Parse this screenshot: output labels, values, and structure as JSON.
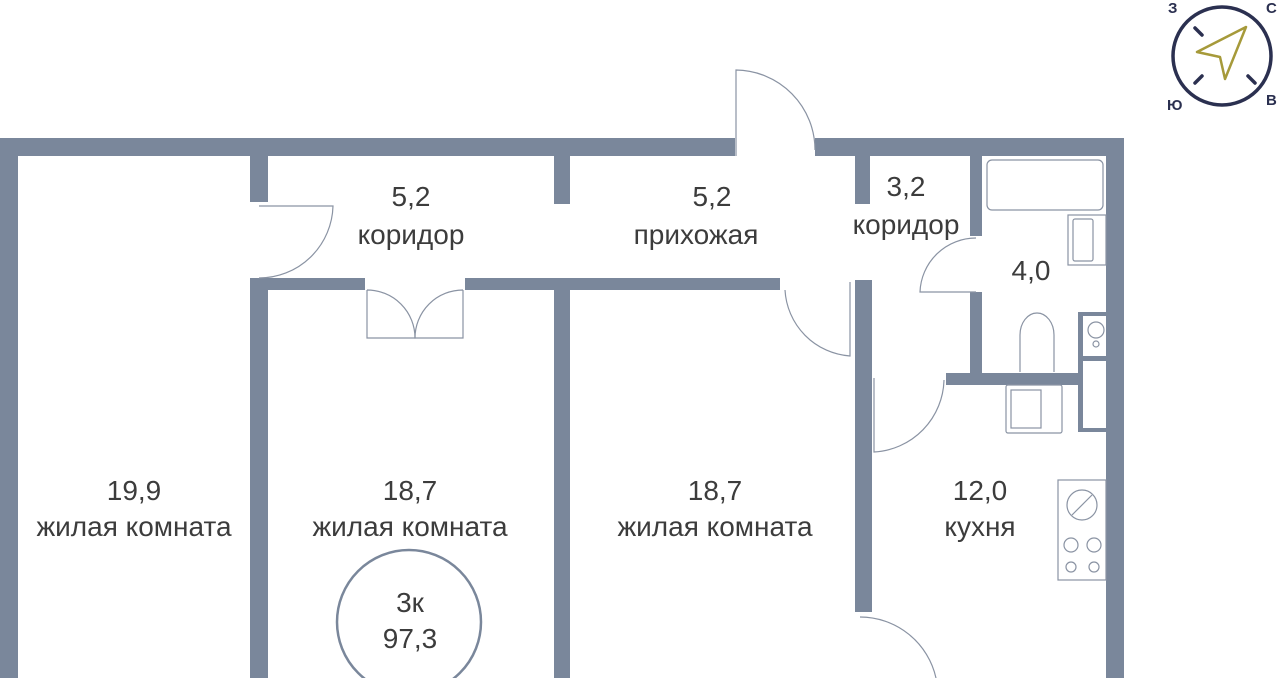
{
  "compass": {
    "north": "С",
    "west": "З",
    "south": "Ю",
    "east": "В",
    "ring_color": "#2b3050",
    "arrow_color": "#a69a3a"
  },
  "wall_color": "#7a879b",
  "rooms": [
    {
      "area": "19,9",
      "name": "жилая комната"
    },
    {
      "area": "5,2",
      "name": "коридор"
    },
    {
      "area": "18,7",
      "name": "жилая комната"
    },
    {
      "area": "5,2",
      "name": "прихожая"
    },
    {
      "area": "18,7",
      "name": "жилая комната"
    },
    {
      "area": "3,2",
      "name": "коридор"
    },
    {
      "area": "4,0",
      "name": ""
    },
    {
      "area": "12,0",
      "name": "кухня"
    }
  ],
  "summary": {
    "rooms": "3к",
    "total_area": "97,3"
  }
}
